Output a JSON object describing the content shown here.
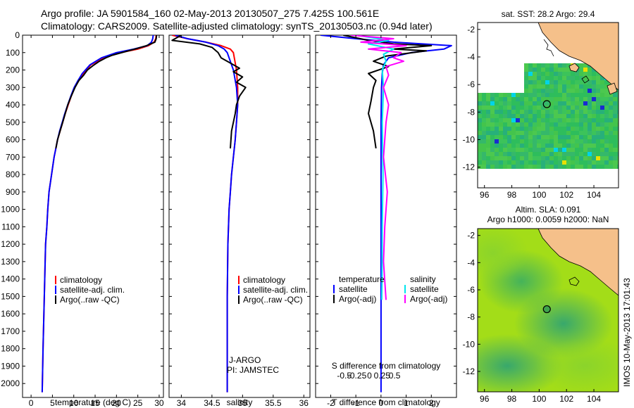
{
  "header": {
    "line1": "Argo profile: JA 5901584_160 02-May-2013 20130507_275 7.425S 100.561E",
    "line2": "Climatology: CARS2009. Satellite-adjusted climatology: synTS_20130503.nc (0.94d later)"
  },
  "side_stamp": "IMOS 10-May-2013 17:01:43",
  "colors": {
    "climatology": "#ff0000",
    "satellite": "#0000ff",
    "argo": "#000000",
    "salinity_satellite": "#00e5ee",
    "salinity_argo": "#ff00ff",
    "land": "#f5c08a"
  },
  "chart_data": [
    {
      "type": "line",
      "id": "temperature",
      "xlabel": "temperature (deg C)",
      "ylabel": "",
      "xlim": [
        -2,
        31
      ],
      "ylim": [
        2080,
        0
      ],
      "xticks": [
        0,
        5,
        10,
        15,
        20,
        25,
        30
      ],
      "yticks": [
        0,
        100,
        200,
        300,
        400,
        500,
        600,
        700,
        800,
        900,
        1000,
        1100,
        1200,
        1300,
        1400,
        1500,
        1600,
        1700,
        1800,
        1900,
        2000
      ],
      "legend": [
        "climatology",
        "satellite-adj. clim.",
        "Argo(..raw -QC)"
      ],
      "series": [
        {
          "name": "climatology",
          "color": "#ff0000",
          "x": [
            29.3,
            29.2,
            28.8,
            27.5,
            25,
            21,
            17,
            14,
            12.2,
            11.2,
            10.2,
            9.4,
            8.7,
            8.0,
            7.4,
            6.8,
            6.2,
            5.8,
            5.4,
            5.1,
            4.8,
            4.5,
            4.2,
            3.9,
            3.7,
            3.4,
            3.2,
            3.0,
            2.8,
            2.6
          ],
          "y": [
            0,
            20,
            40,
            60,
            80,
            100,
            130,
            170,
            220,
            260,
            300,
            350,
            400,
            450,
            500,
            550,
            600,
            650,
            700,
            750,
            800,
            850,
            900,
            1000,
            1100,
            1200,
            1400,
            1600,
            1800,
            2050
          ]
        },
        {
          "name": "satellite-adj. clim.",
          "color": "#0000ff",
          "x": [
            28.6,
            28.5,
            28.2,
            27.2,
            24,
            20,
            16.5,
            13.8,
            12,
            11,
            10.1,
            9.3,
            8.6,
            7.9,
            7.3,
            6.7,
            6.2,
            5.8,
            5.4,
            5.1,
            4.8,
            4.5,
            4.2,
            3.9,
            3.7,
            3.4,
            3.2,
            3.0,
            2.8,
            2.6
          ],
          "y": [
            0,
            20,
            40,
            60,
            80,
            100,
            130,
            170,
            220,
            260,
            300,
            350,
            400,
            450,
            500,
            550,
            600,
            650,
            700,
            750,
            800,
            850,
            900,
            1000,
            1100,
            1200,
            1400,
            1600,
            1800,
            2050
          ]
        },
        {
          "name": "Argo(..raw -QC)",
          "color": "#000000",
          "x": [
            29.4,
            29.3,
            29.0,
            27,
            25,
            22,
            19,
            17.5,
            16,
            14.5,
            13.2,
            12.3,
            11.2,
            10.3,
            9.4,
            8.6,
            8.0,
            7.4,
            6.8,
            6.2,
            5.8
          ],
          "y": [
            0,
            20,
            40,
            60,
            75,
            95,
            115,
            130,
            150,
            175,
            200,
            230,
            260,
            300,
            350,
            400,
            450,
            500,
            550,
            600,
            650
          ]
        }
      ]
    },
    {
      "type": "line",
      "id": "salinity",
      "xlabel": "salinity",
      "ylabel": "",
      "xlim": [
        33.8,
        36.1
      ],
      "ylim": [
        2080,
        0
      ],
      "xticks": [
        34,
        34.5,
        35,
        35.5,
        36
      ],
      "legend": [
        "climatology",
        "satellite-adj. clim.",
        "Argo(..raw -QC)"
      ],
      "annotations": [
        "J-ARGO",
        "PI: JAMSTEC"
      ],
      "series": [
        {
          "name": "climatology",
          "color": "#ff0000",
          "x": [
            33.85,
            34.1,
            34.4,
            34.65,
            34.8,
            34.85,
            34.9,
            34.92,
            34.92,
            34.9,
            34.88,
            34.85,
            34.82,
            34.8,
            34.78,
            34.76,
            34.75,
            34.75
          ],
          "y": [
            0,
            20,
            40,
            60,
            80,
            100,
            200,
            300,
            400,
            500,
            600,
            700,
            800,
            900,
            1000,
            1200,
            1500,
            2050
          ]
        },
        {
          "name": "satellite-adj. clim.",
          "color": "#0000ff",
          "x": [
            33.9,
            34.1,
            34.4,
            34.6,
            34.7,
            34.75,
            34.85,
            34.9,
            34.92,
            34.9,
            34.88,
            34.85,
            34.82,
            34.8,
            34.78,
            34.76,
            34.75,
            34.75
          ],
          "y": [
            0,
            20,
            40,
            60,
            80,
            100,
            200,
            300,
            400,
            500,
            600,
            700,
            800,
            900,
            1000,
            1200,
            1500,
            2050
          ]
        },
        {
          "name": "Argo(..raw -QC)",
          "color": "#000000",
          "x": [
            34.0,
            33.85,
            34.3,
            34.5,
            34.6,
            34.65,
            34.8,
            34.95,
            34.85,
            35.0,
            34.9,
            35.05,
            34.95,
            34.9,
            34.88,
            34.85,
            34.82,
            34.8
          ],
          "y": [
            0,
            30,
            50,
            70,
            100,
            130,
            160,
            190,
            210,
            240,
            270,
            300,
            350,
            400,
            450,
            500,
            550,
            650
          ]
        }
      ]
    },
    {
      "type": "line",
      "id": "difference",
      "xlabel": "T difference from climatology",
      "xlabel_top": "S difference from climatology",
      "ylabel": "",
      "xlim": [
        -2.6,
        3.0
      ],
      "ylim": [
        2080,
        0
      ],
      "xticks": [
        -2,
        -1,
        0,
        1,
        2
      ],
      "xticks_top": [
        -0.5,
        -0.25,
        0,
        0.25,
        0.5
      ],
      "legend_temperature_title": "temperature",
      "legend_salinity_title": "salinity",
      "legend": [
        "satellite",
        "Argo(-adj)"
      ],
      "series": [
        {
          "name": "temperature satellite",
          "color": "#0000ff",
          "x": [
            -2.4,
            -1.0,
            0.5,
            2.8,
            2.5,
            1.2,
            0.3,
            0.1,
            0.05,
            0.02,
            0,
            0
          ],
          "y": [
            0,
            20,
            40,
            60,
            80,
            100,
            130,
            170,
            220,
            300,
            500,
            2050
          ]
        },
        {
          "name": "temperature Argo(-adj)",
          "color": "#000000",
          "x": [
            -1.5,
            -0.5,
            0.5,
            2.0,
            0.5,
            1.8,
            0.2,
            -0.3,
            0.3,
            -0.5,
            -0.2,
            -0.3,
            -0.4,
            -0.5,
            -0.3,
            -0.2
          ],
          "y": [
            0,
            30,
            50,
            60,
            80,
            90,
            120,
            150,
            180,
            220,
            260,
            300,
            380,
            450,
            550,
            650
          ]
        },
        {
          "name": "salinity satellite",
          "color": "#00e5ee",
          "x": [
            -1.0,
            0.3,
            -0.5,
            0.5,
            0.1,
            0.2,
            0.05,
            0.1,
            0.05,
            0.08,
            0.05,
            0.04,
            0.03
          ],
          "y": [
            0,
            30,
            50,
            80,
            110,
            150,
            200,
            300,
            500,
            800,
            1100,
            1400,
            1520
          ]
        },
        {
          "name": "salinity Argo(-adj)",
          "color": "#ff00ff",
          "x": [
            -1.2,
            0.5,
            -0.8,
            1.0,
            -0.5,
            0.8,
            0.5,
            0.9,
            0.2,
            0.3,
            0.1,
            0.3,
            0.2,
            0.1,
            0.25,
            0.15,
            0.1,
            0.2
          ],
          "y": [
            0,
            20,
            40,
            60,
            80,
            100,
            130,
            150,
            180,
            230,
            300,
            400,
            500,
            700,
            900,
            1100,
            1300,
            1520
          ]
        }
      ]
    },
    {
      "type": "heatmap",
      "id": "map-sst",
      "title": "sat. SST: 28.2  Argo: 29.4",
      "xlim": [
        95.5,
        105.8
      ],
      "ylim": [
        -13.5,
        -1.5
      ],
      "xticks": [
        96,
        98,
        100,
        102,
        104
      ],
      "yticks": [
        -2,
        -4,
        -6,
        -8,
        -10,
        -12
      ],
      "argo_position": {
        "lon": 100.561,
        "lat": -7.425
      }
    },
    {
      "type": "heatmap",
      "id": "map-sla",
      "title": "Altim. SLA: 0.091",
      "subtitle": "Argo h1000: 0.0059 h2000: NaN",
      "xlim": [
        95.5,
        105.8
      ],
      "ylim": [
        -13.5,
        -1.5
      ],
      "xticks": [
        96,
        98,
        100,
        102,
        104
      ],
      "yticks": [
        -2,
        -4,
        -6,
        -8,
        -10,
        -12
      ],
      "argo_position": {
        "lon": 100.561,
        "lat": -7.425
      }
    }
  ]
}
